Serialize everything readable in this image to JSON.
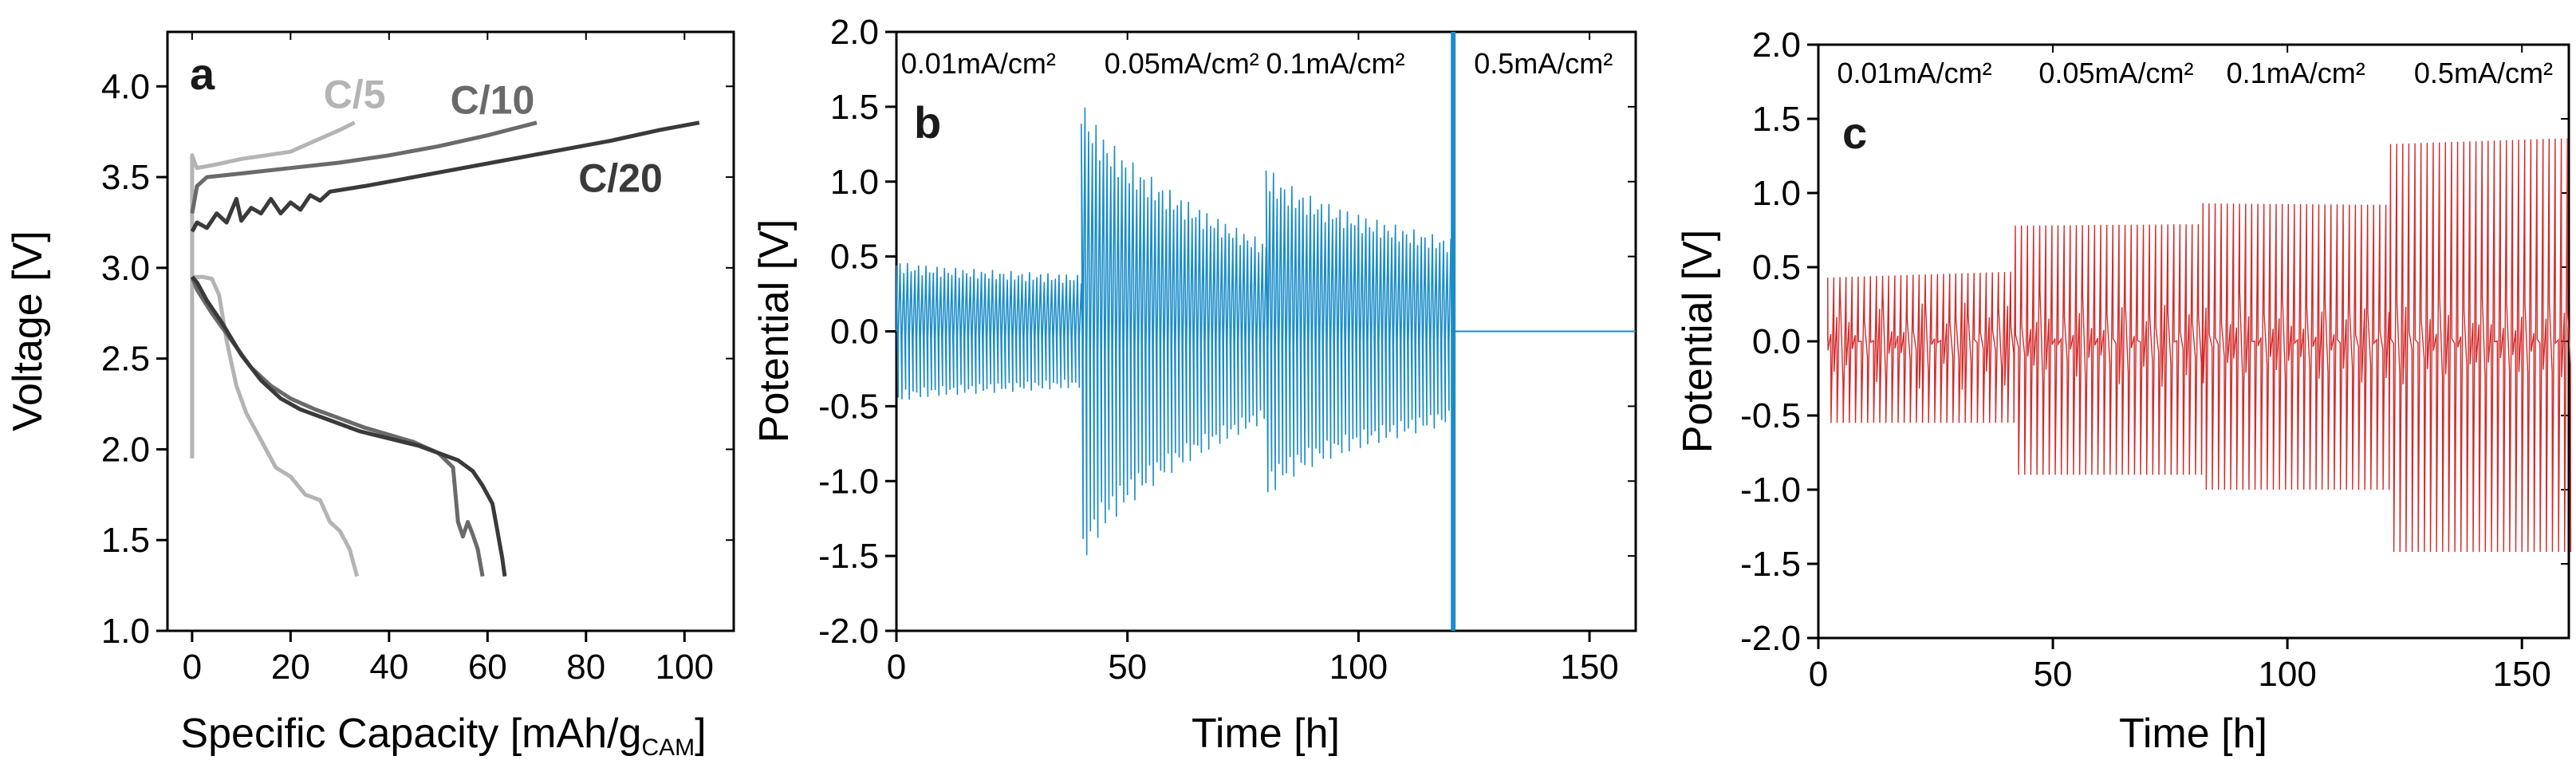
{
  "chart_data": [
    {
      "type": "line",
      "panel": "a",
      "xlabel": "Specific Capacity [mAh/g",
      "xlabel_sub": "CAM",
      "xlabel_close": "]",
      "ylabel": "Voltage [V]",
      "xlim": [
        -5,
        110
      ],
      "ylim": [
        1.0,
        4.3
      ],
      "xticks": [
        0,
        20,
        40,
        60,
        80,
        100
      ],
      "yticks": [
        1.0,
        1.5,
        2.0,
        2.5,
        3.0,
        3.5,
        4.0
      ],
      "ytick_labels": [
        "1.0",
        "1.5",
        "2.0",
        "2.5",
        "3.0",
        "3.5",
        "4.0"
      ],
      "series": [
        {
          "name": "C/5",
          "color": "#b4b4b4",
          "segments": [
            [
              [
                0,
                1.95
              ],
              [
                0,
                3.62
              ],
              [
                0.5,
                3.58
              ],
              [
                1,
                3.55
              ],
              [
                5,
                3.57
              ],
              [
                10,
                3.6
              ],
              [
                15,
                3.62
              ],
              [
                20,
                3.64
              ],
              [
                25,
                3.7
              ],
              [
                30,
                3.76
              ],
              [
                33,
                3.8
              ]
            ],
            [
              [
                0,
                2.95
              ],
              [
                2,
                2.95
              ],
              [
                4,
                2.94
              ],
              [
                5.5,
                2.85
              ],
              [
                7,
                2.6
              ],
              [
                9,
                2.35
              ],
              [
                11,
                2.2
              ],
              [
                14,
                2.05
              ],
              [
                17,
                1.9
              ],
              [
                20,
                1.85
              ],
              [
                23,
                1.75
              ],
              [
                26,
                1.72
              ],
              [
                28,
                1.6
              ],
              [
                30,
                1.55
              ],
              [
                32,
                1.45
              ],
              [
                33.5,
                1.3
              ]
            ]
          ]
        },
        {
          "name": "C/10",
          "color": "#6a6a6a",
          "segments": [
            [
              [
                0,
                3.3
              ],
              [
                1,
                3.45
              ],
              [
                3,
                3.5
              ],
              [
                10,
                3.52
              ],
              [
                20,
                3.55
              ],
              [
                30,
                3.58
              ],
              [
                40,
                3.62
              ],
              [
                50,
                3.67
              ],
              [
                60,
                3.73
              ],
              [
                70,
                3.8
              ]
            ],
            [
              [
                0,
                2.95
              ],
              [
                1,
                2.88
              ],
              [
                4,
                2.75
              ],
              [
                8,
                2.6
              ],
              [
                12,
                2.45
              ],
              [
                16,
                2.35
              ],
              [
                20,
                2.28
              ],
              [
                25,
                2.22
              ],
              [
                30,
                2.17
              ],
              [
                35,
                2.12
              ],
              [
                40,
                2.08
              ],
              [
                45,
                2.04
              ],
              [
                50,
                1.98
              ],
              [
                53,
                1.9
              ],
              [
                54,
                1.6
              ],
              [
                55,
                1.52
              ],
              [
                56,
                1.6
              ],
              [
                57,
                1.53
              ],
              [
                58,
                1.45
              ],
              [
                59,
                1.3
              ]
            ]
          ]
        },
        {
          "name": "C/20",
          "color": "#3a3a3a",
          "segments": [
            [
              [
                0,
                3.2
              ],
              [
                1,
                3.25
              ],
              [
                3,
                3.22
              ],
              [
                5,
                3.3
              ],
              [
                7,
                3.25
              ],
              [
                9,
                3.38
              ],
              [
                10,
                3.26
              ],
              [
                12,
                3.33
              ],
              [
                14,
                3.3
              ],
              [
                16,
                3.38
              ],
              [
                18,
                3.3
              ],
              [
                20,
                3.36
              ],
              [
                22,
                3.32
              ],
              [
                24,
                3.4
              ],
              [
                26,
                3.37
              ],
              [
                28,
                3.42
              ],
              [
                35,
                3.45
              ],
              [
                45,
                3.5
              ],
              [
                55,
                3.55
              ],
              [
                65,
                3.6
              ],
              [
                75,
                3.65
              ],
              [
                85,
                3.7
              ],
              [
                95,
                3.76
              ],
              [
                103,
                3.8
              ]
            ],
            [
              [
                0,
                2.95
              ],
              [
                1,
                2.92
              ],
              [
                3,
                2.82
              ],
              [
                6,
                2.7
              ],
              [
                10,
                2.52
              ],
              [
                14,
                2.38
              ],
              [
                18,
                2.28
              ],
              [
                22,
                2.22
              ],
              [
                28,
                2.16
              ],
              [
                34,
                2.1
              ],
              [
                40,
                2.06
              ],
              [
                46,
                2.02
              ],
              [
                50,
                1.98
              ],
              [
                54,
                1.94
              ],
              [
                57,
                1.88
              ],
              [
                59,
                1.8
              ],
              [
                61,
                1.7
              ],
              [
                62,
                1.55
              ],
              [
                63,
                1.4
              ],
              [
                63.5,
                1.3
              ]
            ]
          ]
        }
      ],
      "annotations": [
        {
          "text": "C/5",
          "x": 33,
          "y": 3.88,
          "color": "#b4b4b4"
        },
        {
          "text": "C/10",
          "x": 61,
          "y": 3.85,
          "color": "#6a6a6a"
        },
        {
          "text": "C/20",
          "x": 87,
          "y": 3.42,
          "color": "#3a3a3a"
        }
      ],
      "letter": "a"
    },
    {
      "type": "line",
      "panel": "b",
      "xlabel": "Time [h]",
      "ylabel": "Potential [V]",
      "xlim": [
        0,
        160
      ],
      "ylim": [
        -2.0,
        2.0
      ],
      "xticks": [
        0,
        50,
        100,
        150
      ],
      "yticks": [
        -2.0,
        -1.5,
        -1.0,
        -0.5,
        0.0,
        0.5,
        1.0,
        1.5,
        2.0
      ],
      "ytick_labels": [
        "-2.0",
        "-1.5",
        "-1.0",
        "-0.5",
        "0.0",
        "0.5",
        "1.0",
        "1.5",
        "2.0"
      ],
      "color": "#1a8cc8",
      "segments": [
        {
          "t0": 0,
          "t1": 40,
          "amplitude_start": 0.48,
          "amplitude_end": 0.38,
          "period": 0.8
        },
        {
          "t0": 40,
          "t1": 80,
          "amplitude_start": 1.65,
          "amplitude_end": 0.6,
          "period": 0.8
        },
        {
          "t0": 80,
          "t1": 120,
          "amplitude_start": 1.15,
          "amplitude_end": 0.62,
          "period": 0.8
        }
      ],
      "flat_after": {
        "from": 120,
        "to": 160,
        "value": 0.0
      },
      "short_marker_x": 120.5,
      "region_labels": [
        {
          "text": "0.01mA/cm²",
          "x": 1
        },
        {
          "text": "0.05mA/cm²",
          "x": 45
        },
        {
          "text": "0.1mA/cm²",
          "x": 80
        },
        {
          "text": "0.5mA/cm²",
          "x": 125
        }
      ],
      "letter": "b"
    },
    {
      "type": "line",
      "panel": "c",
      "xlabel": "Time [h]",
      "ylabel": "Potential [V]",
      "xlim": [
        0,
        160
      ],
      "ylim": [
        -2.0,
        2.0
      ],
      "xticks": [
        0,
        50,
        100,
        150
      ],
      "yticks": [
        -2.0,
        -1.5,
        -1.0,
        -0.5,
        0.0,
        0.5,
        1.0,
        1.5,
        2.0
      ],
      "ytick_labels": [
        "-2.0",
        "-1.5",
        "-1.0",
        "-0.5",
        "0.0",
        "0.5",
        "1.0",
        "1.5",
        "2.0"
      ],
      "color": "#d42a2a",
      "segments": [
        {
          "t0": 2,
          "t1": 42,
          "upper": 0.43,
          "upper_end": 0.47,
          "lower": -0.55,
          "period": 1.3
        },
        {
          "t0": 42,
          "t1": 82,
          "upper": 0.78,
          "upper_end": 0.79,
          "lower": -0.9,
          "period": 1.3
        },
        {
          "t0": 82,
          "t1": 122,
          "upper": 0.93,
          "upper_end": 0.92,
          "lower": -1.0,
          "period": 1.3
        },
        {
          "t0": 122,
          "t1": 160,
          "upper": 1.33,
          "upper_end": 1.37,
          "lower": -1.42,
          "period": 1.3
        }
      ],
      "region_labels": [
        {
          "text": "0.01mA/cm²",
          "x": 4
        },
        {
          "text": "0.05mA/cm²",
          "x": 47
        },
        {
          "text": "0.1mA/cm²",
          "x": 87
        },
        {
          "text": "0.5mA/cm²",
          "x": 127
        }
      ],
      "letter": "c"
    }
  ]
}
